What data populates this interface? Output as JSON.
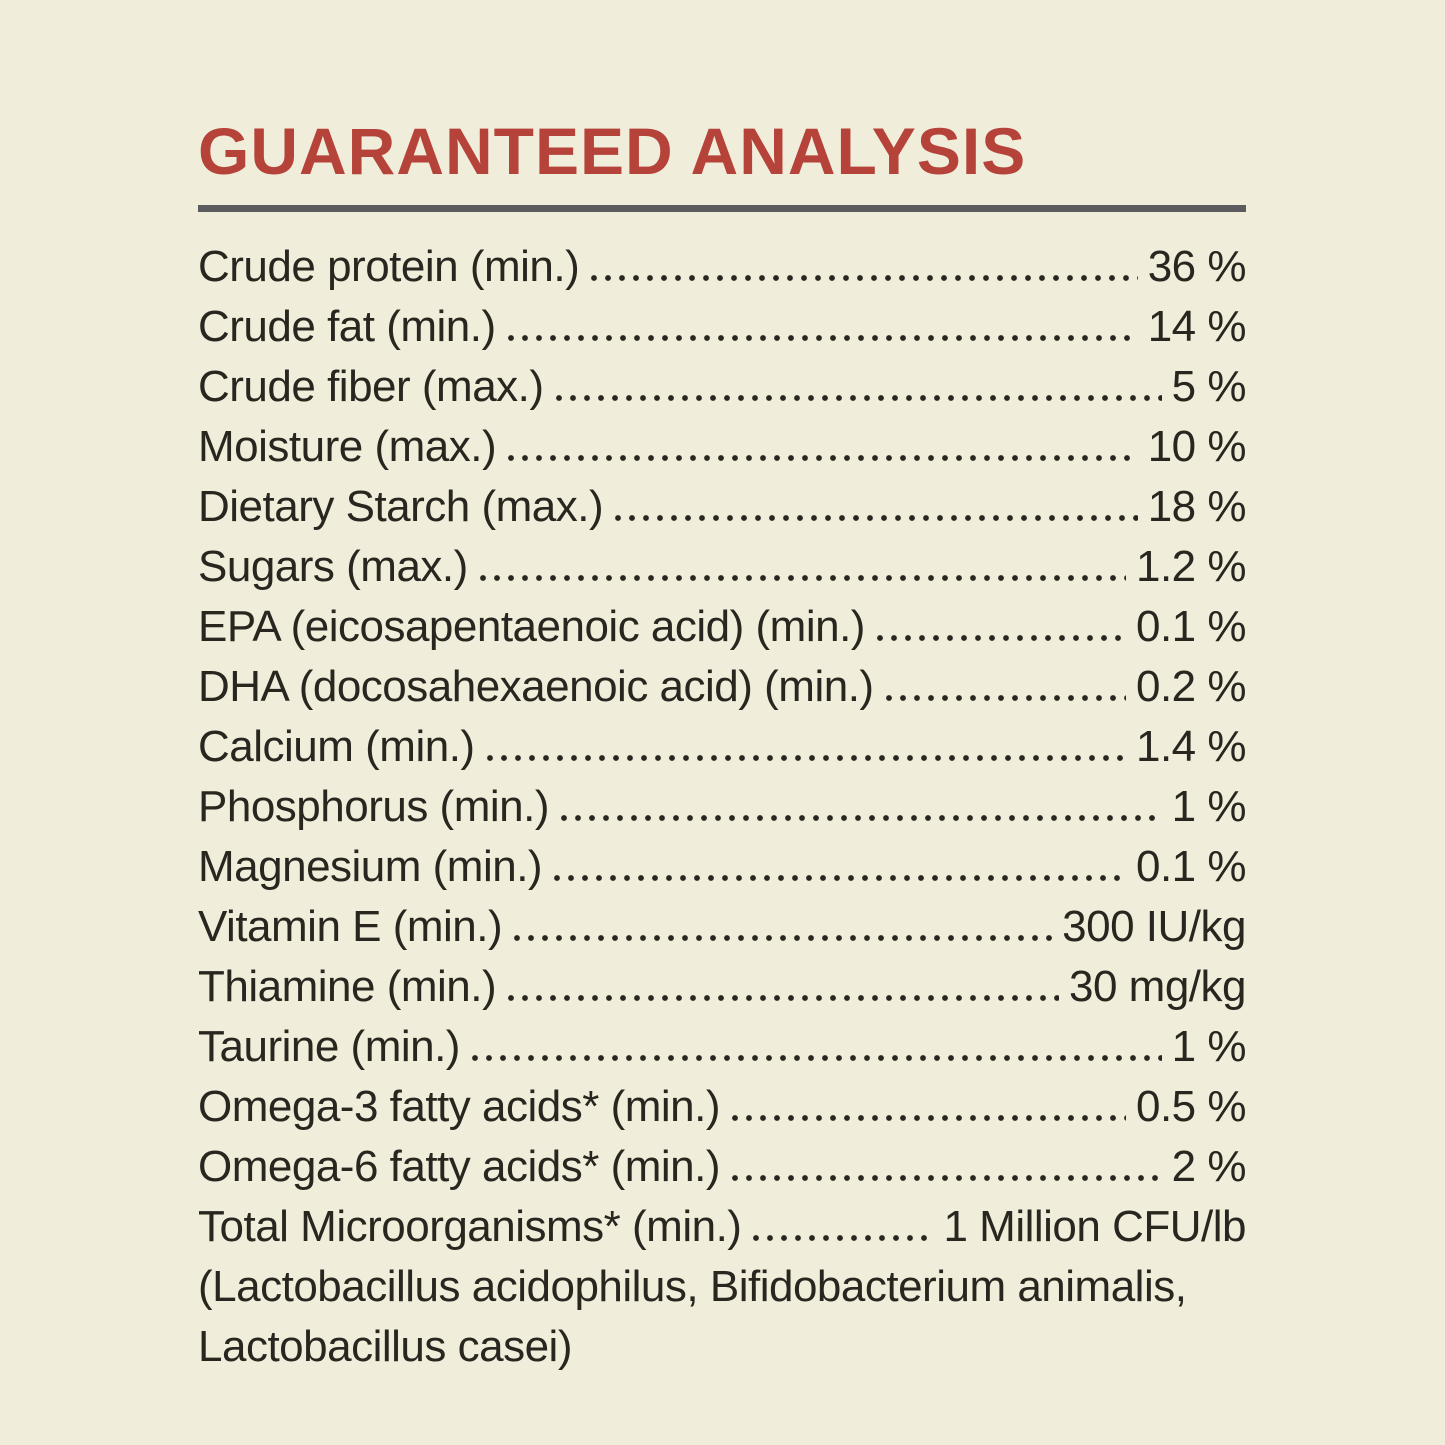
{
  "page": {
    "background_color": "#f1eddb",
    "accent_color": "#b5433a",
    "text_color": "#28261f",
    "rule_color": "#5c5c5e"
  },
  "header": {
    "title": "GUARANTEED ANALYSIS"
  },
  "analysis": {
    "rows": [
      {
        "label": "Crude protein (min.)",
        "value": "36 %"
      },
      {
        "label": "Crude fat (min.)",
        "value": "14 %"
      },
      {
        "label": "Crude fiber (max.)",
        "value": "5 %"
      },
      {
        "label": "Moisture (max.)",
        "value": "10 %"
      },
      {
        "label": "Dietary Starch (max.)",
        "value": "18 %"
      },
      {
        "label": "Sugars (max.)",
        "value": "1.2 %"
      },
      {
        "label": "EPA (eicosapentaenoic acid) (min.)",
        "value": "0.1 %"
      },
      {
        "label": "DHA (docosahexaenoic acid) (min.)",
        "value": "0.2 %"
      },
      {
        "label": "Calcium (min.)",
        "value": "1.4 %"
      },
      {
        "label": "Phosphorus (min.)",
        "value": "1 %"
      },
      {
        "label": "Magnesium (min.)",
        "value": "0.1 %"
      },
      {
        "label": "Vitamin E (min.)",
        "value": "300 IU/kg"
      },
      {
        "label": "Thiamine (min.)",
        "value": "30 mg/kg"
      },
      {
        "label": "Taurine (min.)",
        "value": "1 %"
      },
      {
        "label": "Omega-3 fatty acids* (min.)",
        "value": "0.5 %"
      },
      {
        "label": "Omega-6 fatty acids* (min.)",
        "value": "2 %"
      },
      {
        "label": "Total Microorganisms* (min.)",
        "value": "1 Million CFU/lb"
      }
    ],
    "footnote_lines": [
      "(Lactobacillus acidophilus, Bifidobacterium animalis,",
      "Lactobacillus casei)"
    ]
  }
}
